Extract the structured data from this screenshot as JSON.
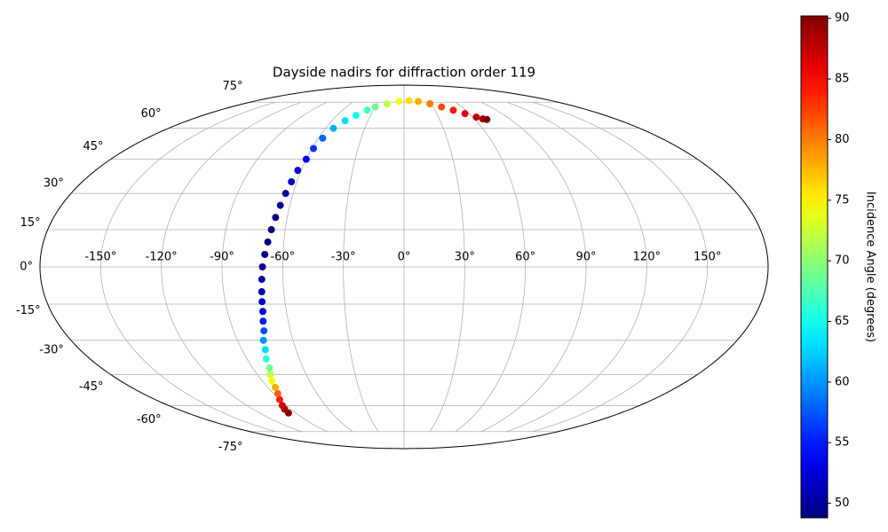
{
  "chart_data": {
    "type": "scatter",
    "projection": "mollweide",
    "title": "Dayside nadirs for diffraction order 119",
    "x": [
      -96,
      -95,
      -93,
      -90,
      -87,
      -85,
      -84,
      -82,
      -80,
      -79,
      -77,
      -76,
      -74,
      -73,
      -72,
      -71.5,
      -71,
      -70.5,
      -70,
      -69,
      -68,
      -67,
      -66,
      -65,
      -64,
      -63,
      -62,
      -60,
      -59,
      -57,
      -54,
      -49,
      -43,
      -36,
      -30,
      -19,
      -6,
      6,
      17,
      29,
      39,
      48,
      56,
      63,
      67,
      70
    ],
    "y": [
      -64,
      -62,
      -60,
      -57,
      -54,
      -51,
      -48,
      -45,
      -42,
      -38,
      -34,
      -30,
      -26,
      -22,
      -18,
      -14,
      -10,
      -5,
      0,
      5,
      10,
      15,
      20,
      25,
      30,
      35,
      40,
      45,
      50,
      55,
      60,
      64,
      67,
      70,
      72,
      74,
      75.5,
      76,
      75.5,
      74,
      72,
      70,
      68,
      66,
      65,
      64.7
    ],
    "c": [
      90,
      89,
      87,
      84,
      81,
      78,
      75,
      72,
      69,
      66,
      63,
      60,
      57,
      55,
      53,
      51.5,
      50.5,
      50,
      49.5,
      49.2,
      49,
      49,
      49.2,
      49.5,
      50,
      51,
      52.5,
      54,
      56,
      58,
      61,
      63,
      65,
      67,
      69,
      72,
      74,
      76,
      78,
      80,
      82,
      84,
      86,
      88,
      89,
      90
    ],
    "colormap": "jet",
    "xlim": [
      -180,
      180
    ],
    "ylim": [
      -90,
      90
    ],
    "xticks": [
      {
        "value": -150,
        "label": "-150°"
      },
      {
        "value": -120,
        "label": "-120°"
      },
      {
        "value": -90,
        "label": "-90°"
      },
      {
        "value": -60,
        "label": "-60°"
      },
      {
        "value": -30,
        "label": "-30°"
      },
      {
        "value": 0,
        "label": "0°"
      },
      {
        "value": 30,
        "label": "30°"
      },
      {
        "value": 60,
        "label": "60°"
      },
      {
        "value": 90,
        "label": "90°"
      },
      {
        "value": 120,
        "label": "120°"
      },
      {
        "value": 150,
        "label": "150°"
      }
    ],
    "yticks": [
      {
        "value": -75,
        "label": "-75°"
      },
      {
        "value": -60,
        "label": "-60°"
      },
      {
        "value": -45,
        "label": "-45°"
      },
      {
        "value": -30,
        "label": "-30°"
      },
      {
        "value": -15,
        "label": "-15°"
      },
      {
        "value": 0,
        "label": "0°"
      },
      {
        "value": 15,
        "label": "15°"
      },
      {
        "value": 30,
        "label": "30°"
      },
      {
        "value": 45,
        "label": "45°"
      },
      {
        "value": 60,
        "label": "60°"
      },
      {
        "value": 75,
        "label": "75°"
      }
    ],
    "grid": true,
    "colorbar": {
      "label": "Incidence Angle (degrees)",
      "clim": [
        48.8,
        90.2
      ],
      "ticks": [
        50,
        55,
        60,
        65,
        70,
        75,
        80,
        85,
        90
      ]
    }
  }
}
